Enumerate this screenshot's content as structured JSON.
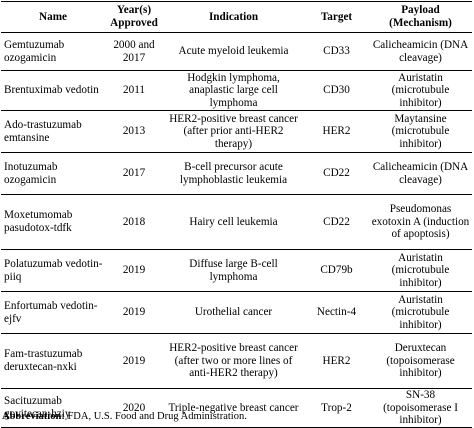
{
  "table": {
    "headers": {
      "name": "Name",
      "year": "Year(s) Approved",
      "indication": "Indication",
      "target": "Target",
      "payload": "Payload (Mechanism)"
    },
    "rows": [
      {
        "name": "Gemtuzumab ozogamicin",
        "year": "2000 and 2017",
        "indication": "Acute myeloid leukemia",
        "target": "CD33",
        "payload": "Calicheamicin (DNA cleavage)"
      },
      {
        "name": "Brentuximab vedotin",
        "year": "2011",
        "indication": "Hodgkin lymphoma, anaplastic large cell lymphoma",
        "target": "CD30",
        "payload": "Auristatin (microtubule inhibitor)"
      },
      {
        "name": "Ado-trastuzumab emtansine",
        "year": "2013",
        "indication": "HER2-positive breast cancer (after prior anti-HER2 therapy)",
        "target": "HER2",
        "payload": "Maytansine (microtubule inhibitor)"
      },
      {
        "name": "Inotuzumab ozogamicin",
        "year": "2017",
        "indication": "B-cell precursor acute lymphoblastic leukemia",
        "target": "CD22",
        "payload": "Calicheamicin (DNA cleavage)"
      },
      {
        "name": "Moxetumomab pasudotox-tdfk",
        "year": "2018",
        "indication": "Hairy cell leukemia",
        "target": "CD22",
        "payload": "Pseudomonas exotoxin A (induction of apoptosis)"
      },
      {
        "name": "Polatuzumab vedotin-piiq",
        "year": "2019",
        "indication": "Diffuse large B-cell lymphoma",
        "target": "CD79b",
        "payload": "Auristatin (microtubule inhibitor)"
      },
      {
        "name": "Enfortumab vedotin-ejfv",
        "year": "2019",
        "indication": "Urothelial cancer",
        "target": "Nectin-4",
        "payload": "Auristatin (microtubule inhibitor)"
      },
      {
        "name": "Fam-trastuzumab deruxtecan-nxki",
        "year": "2019",
        "indication": "HER2-positive breast cancer (after two or more lines of anti-HER2 therapy)",
        "target": "HER2",
        "payload": "Deruxtecan (topoisomerase inhibitor)"
      },
      {
        "name": "Sacituzumab govitecan-hziy",
        "year": "2020",
        "indication": "Triple-negative breast cancer",
        "target": "Trop-2",
        "payload": "SN-38 (topoisomerase I inhibitor)"
      }
    ]
  },
  "footnote": {
    "label": "Abbreviation:",
    "text": "FDA, U.S. Food and Drug Administration."
  }
}
